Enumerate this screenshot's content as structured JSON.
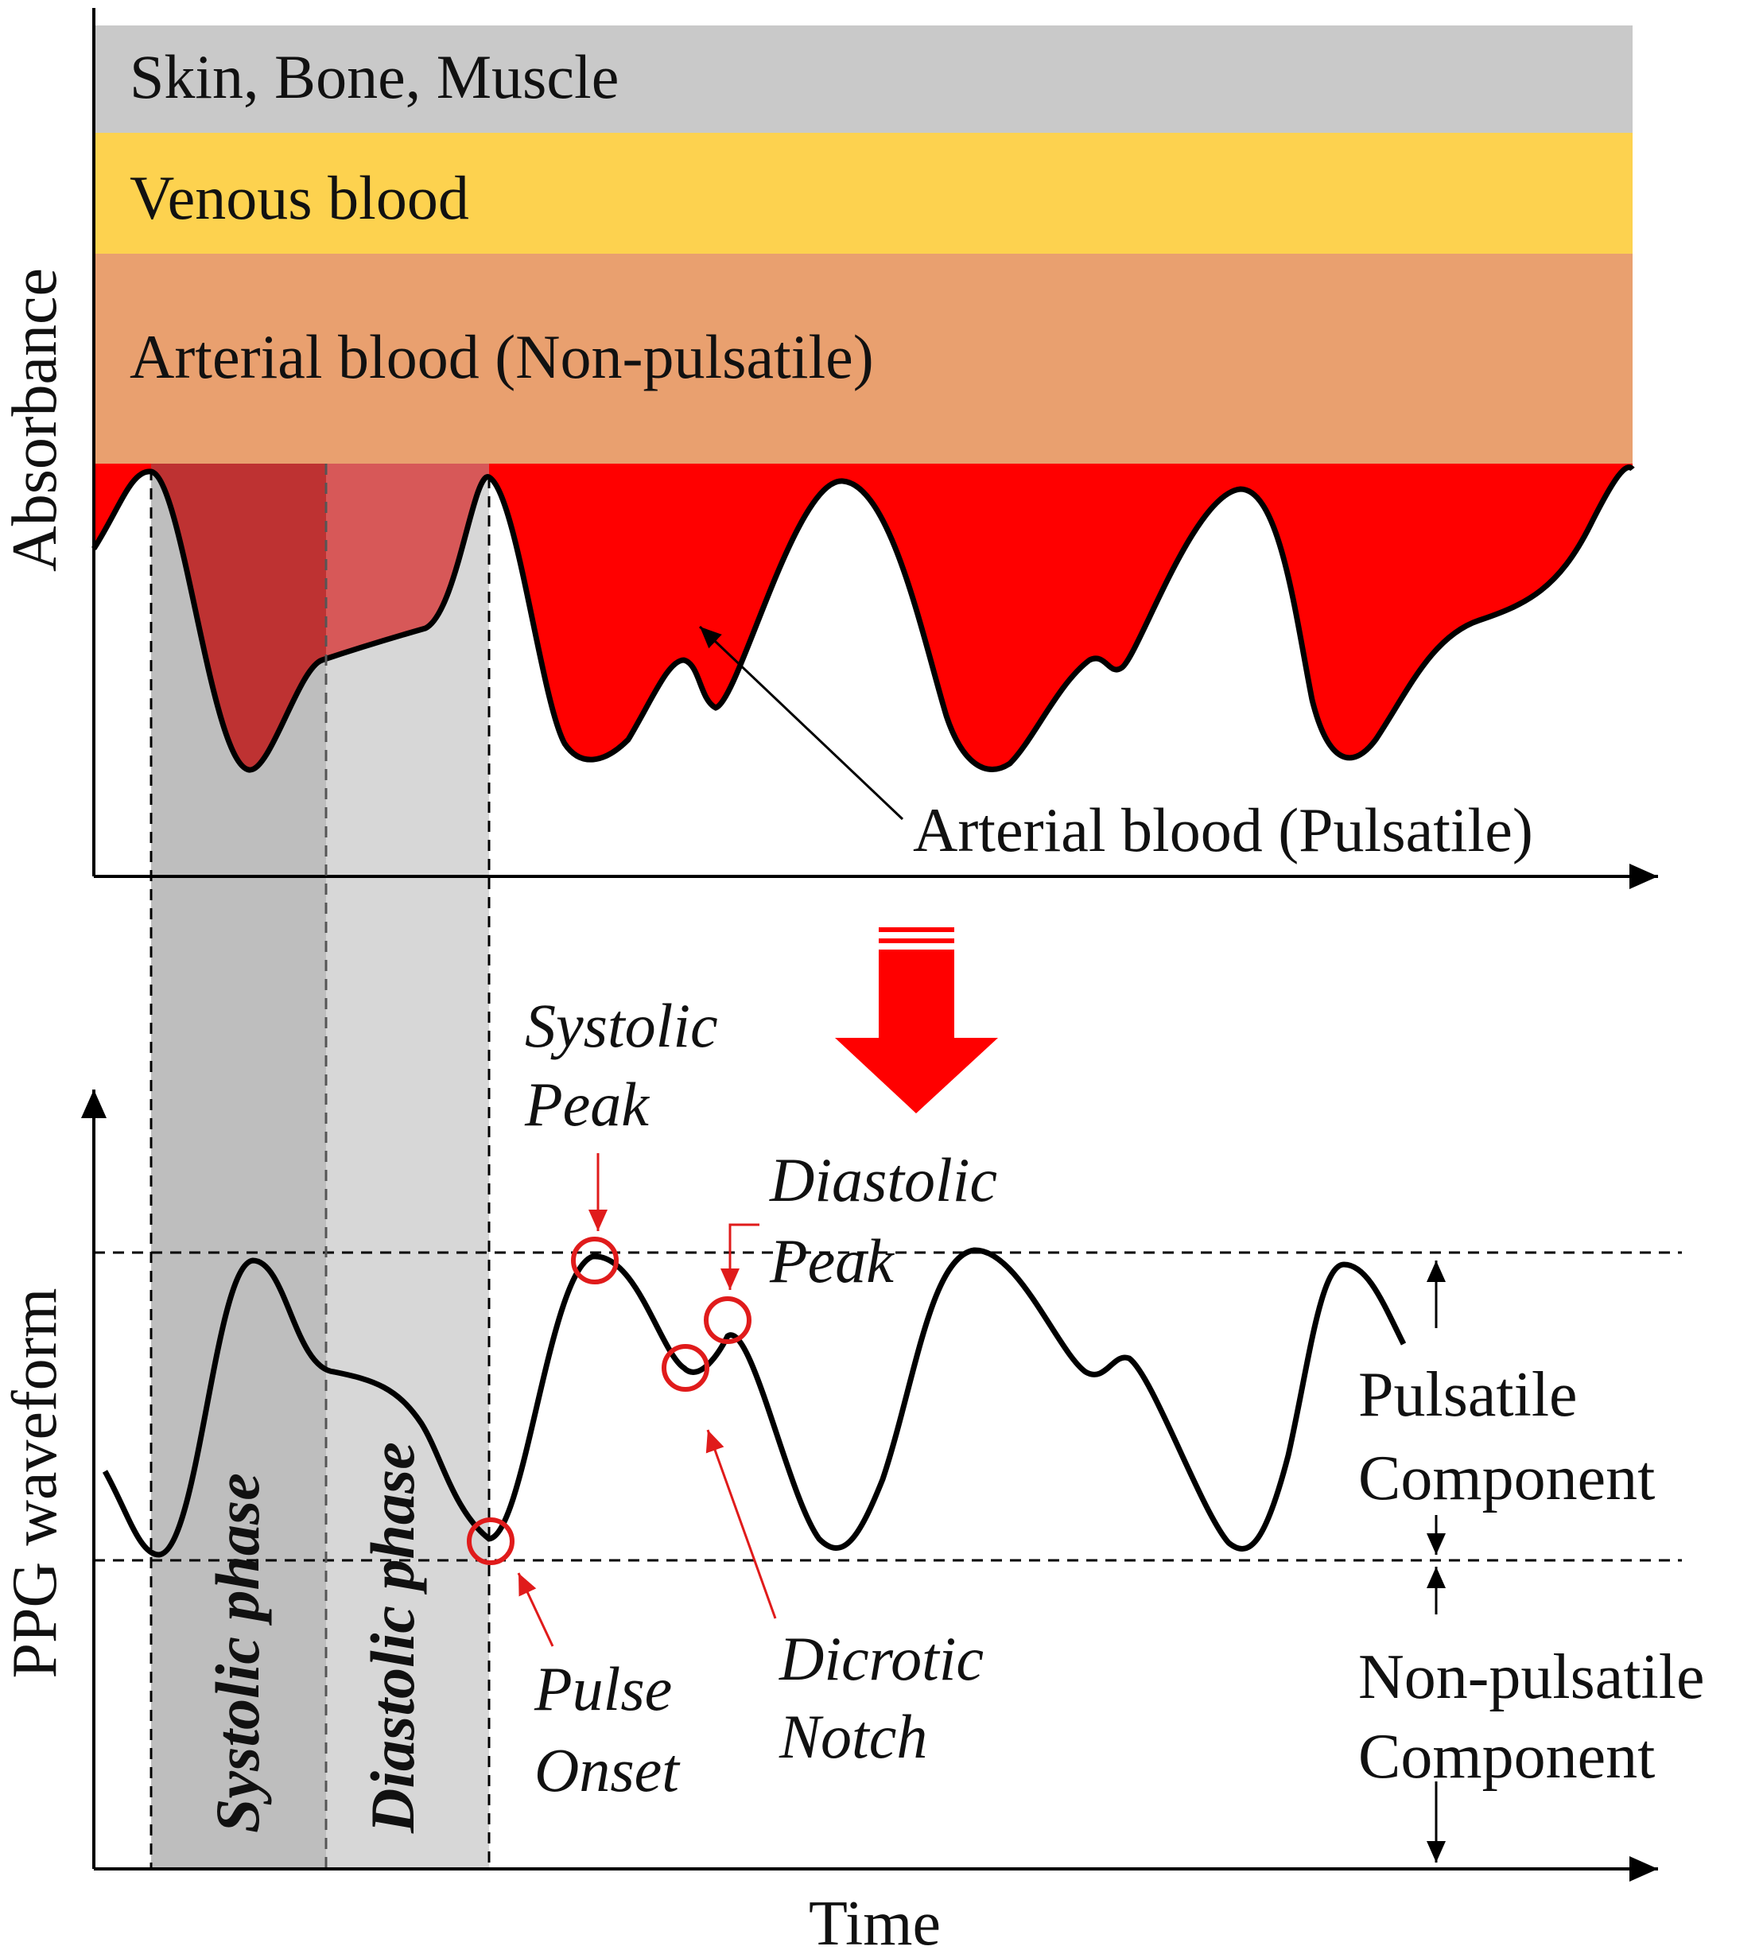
{
  "top_panel": {
    "y_axis_label": "Absorbance",
    "layers": [
      {
        "label": "Skin, Bone, Muscle",
        "color": "#c9c9c9"
      },
      {
        "label": "Venous blood",
        "color": "#fdd24f"
      },
      {
        "label": "Arterial blood (Non-pulsatile)",
        "color": "#e9a06f"
      }
    ],
    "pulsatile_label": "Arterial blood (Pulsatile)",
    "pulsatile_color": "#ff0000"
  },
  "bottom_panel": {
    "y_axis_label": "PPG waveform",
    "x_axis_label": "Time",
    "phases": [
      {
        "label": "Systolic phase",
        "color": "#a6a6a6"
      },
      {
        "label": "Diastolic phase",
        "color": "#d6d6d6"
      }
    ],
    "annotations": {
      "systolic_peak": [
        "Systolic",
        "Peak"
      ],
      "diastolic_peak": [
        "Diastolic",
        "Peak"
      ],
      "dicrotic_notch": [
        "Dicrotic",
        "Notch"
      ],
      "pulse_onset": [
        "Pulse",
        "Onset"
      ]
    },
    "components": {
      "pulsatile": [
        "Pulsatile",
        "Component"
      ],
      "non_pulsatile": [
        "Non-pulsatile",
        "Component"
      ]
    }
  },
  "colors": {
    "marker": "#e01b1b",
    "arrow": "#ff0000",
    "curve": "#000000"
  }
}
